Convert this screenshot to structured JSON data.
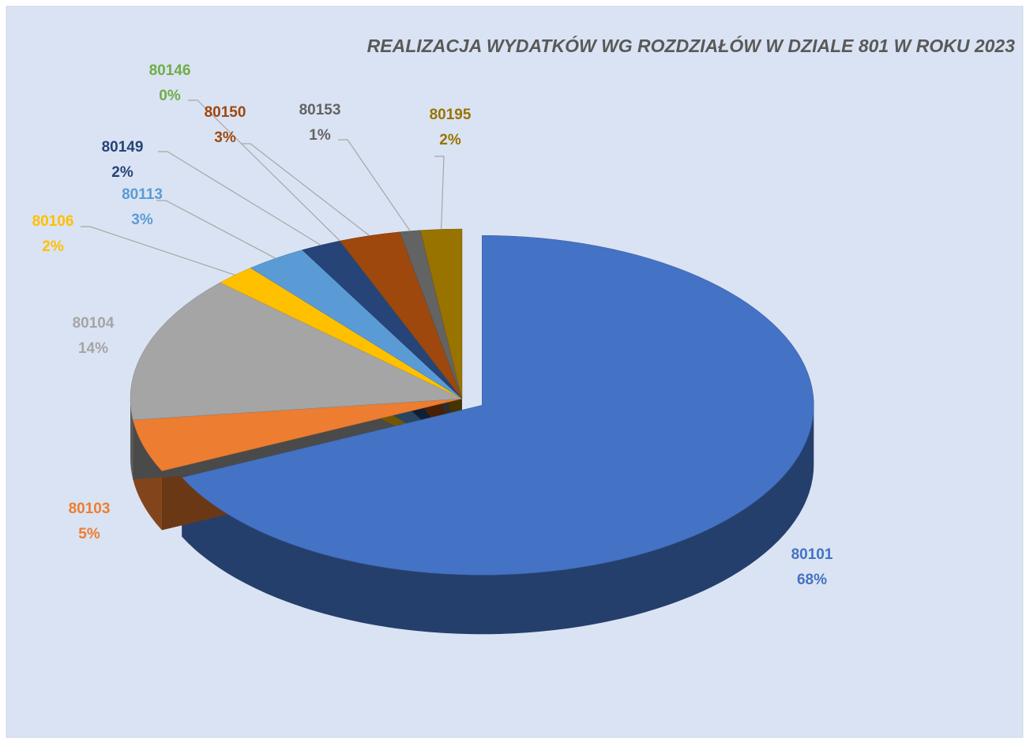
{
  "chart_data": {
    "type": "pie",
    "title": "REALIZACJA WYDATKÓW WG ROZDZIAŁÓW W DZIALE 801 W ROKU 2023",
    "categories": [
      "80101",
      "80103",
      "80104",
      "80106",
      "80113",
      "80149",
      "80146",
      "80150",
      "80153",
      "80195"
    ],
    "values": [
      68,
      5,
      14,
      2,
      3,
      2,
      0,
      3,
      1,
      2
    ],
    "value_labels": [
      "68%",
      "5%",
      "14%",
      "2%",
      "3%",
      "2%",
      "0%",
      "3%",
      "1%",
      "2%"
    ],
    "colors": [
      "#4472c4",
      "#ed7d31",
      "#a5a5a5",
      "#ffc000",
      "#5b9bd5",
      "#264478",
      "#70ad47",
      "#9e480e",
      "#636363",
      "#997300"
    ]
  }
}
